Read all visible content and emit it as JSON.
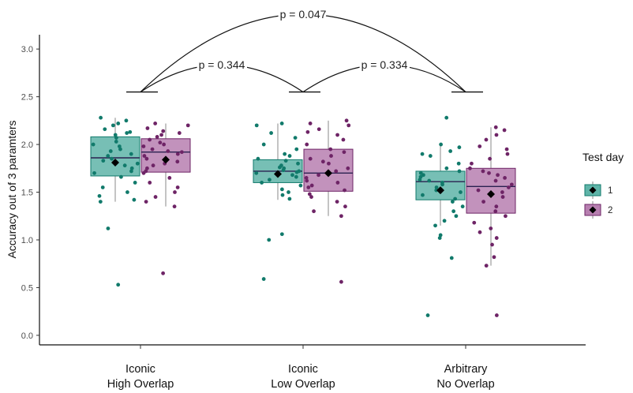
{
  "chart_data": {
    "type": "box",
    "ylabel": "Accuracy out of 3 paramters",
    "ylim": [
      -0.1,
      3.15
    ],
    "yticks": [
      "0.0",
      "0.5",
      "1.0",
      "1.5",
      "2.0",
      "2.5",
      "3.0"
    ],
    "categories": [
      {
        "line1": "Iconic",
        "line2": "High Overlap"
      },
      {
        "line1": "Iconic",
        "line2": "Low Overlap"
      },
      {
        "line1": "Arbitrary",
        "line2": "No Overlap"
      }
    ],
    "legend": {
      "title": "Test day",
      "position": "right",
      "items": [
        {
          "label": "1",
          "color": "#1a8c7c"
        },
        {
          "label": "2",
          "color": "#7b2a72"
        }
      ]
    },
    "colors": {
      "day1_fill": "#5fb4a8",
      "day1_point": "#117a6b",
      "day2_fill": "#b77fb0",
      "day2_point": "#6e2466"
    },
    "series": [
      {
        "name": "1",
        "boxes": [
          {
            "q1": 1.67,
            "median": 1.86,
            "q3": 2.08,
            "whisker_low": 1.4,
            "whisker_high": 2.28,
            "mean": 1.81,
            "points": [
              2.28,
              2.25,
              2.22,
              2.2,
              2.16,
              2.13,
              2.12,
              2.1,
              2.07,
              2.03,
              2.0,
              1.98,
              1.95,
              1.93,
              1.9,
              1.88,
              1.85,
              1.83,
              1.8,
              1.78,
              1.75,
              1.72,
              1.7,
              1.66,
              1.6,
              1.55,
              1.5,
              1.46,
              1.42,
              1.4,
              1.12,
              0.53
            ]
          },
          {
            "q1": 1.6,
            "median": 1.72,
            "q3": 1.84,
            "whisker_low": 1.42,
            "whisker_high": 2.22,
            "mean": 1.69,
            "points": [
              2.22,
              2.2,
              2.12,
              2.07,
              2.0,
              1.95,
              1.9,
              1.88,
              1.85,
              1.83,
              1.8,
              1.78,
              1.76,
              1.75,
              1.73,
              1.72,
              1.71,
              1.7,
              1.68,
              1.66,
              1.63,
              1.6,
              1.57,
              1.53,
              1.5,
              1.47,
              1.43,
              1.06,
              1.0,
              0.59
            ]
          },
          {
            "q1": 1.42,
            "median": 1.61,
            "q3": 1.72,
            "whisker_low": 1.15,
            "whisker_high": 2.0,
            "mean": 1.52,
            "points": [
              2.28,
              2.0,
              1.97,
              1.93,
              1.9,
              1.88,
              1.8,
              1.75,
              1.72,
              1.7,
              1.68,
              1.66,
              1.63,
              1.62,
              1.6,
              1.58,
              1.55,
              1.52,
              1.5,
              1.47,
              1.43,
              1.4,
              1.35,
              1.3,
              1.25,
              1.2,
              1.15,
              1.05,
              1.02,
              0.81,
              0.21
            ]
          }
        ]
      },
      {
        "name": "2",
        "boxes": [
          {
            "q1": 1.71,
            "median": 1.92,
            "q3": 2.06,
            "whisker_low": 1.35,
            "whisker_high": 2.22,
            "mean": 1.84,
            "points": [
              2.22,
              2.2,
              2.17,
              2.14,
              2.12,
              2.1,
              2.08,
              2.05,
              2.02,
              2.0,
              1.98,
              1.95,
              1.93,
              1.92,
              1.9,
              1.88,
              1.85,
              1.82,
              1.8,
              1.78,
              1.75,
              1.72,
              1.7,
              1.65,
              1.6,
              1.55,
              1.5,
              1.45,
              1.4,
              1.35,
              0.65
            ]
          },
          {
            "q1": 1.51,
            "median": 1.7,
            "q3": 1.95,
            "whisker_low": 1.25,
            "whisker_high": 2.25,
            "mean": 1.7,
            "points": [
              2.25,
              2.22,
              2.2,
              2.16,
              2.13,
              2.1,
              2.05,
              2.0,
              1.95,
              1.92,
              1.88,
              1.85,
              1.82,
              1.8,
              1.75,
              1.72,
              1.7,
              1.68,
              1.65,
              1.62,
              1.6,
              1.57,
              1.55,
              1.52,
              1.48,
              1.45,
              1.4,
              1.35,
              1.3,
              1.25,
              0.56
            ]
          },
          {
            "q1": 1.28,
            "median": 1.56,
            "q3": 1.75,
            "whisker_low": 0.73,
            "whisker_high": 2.18,
            "mean": 1.48,
            "points": [
              2.18,
              2.15,
              2.1,
              2.05,
              1.98,
              1.95,
              1.9,
              1.85,
              1.8,
              1.75,
              1.72,
              1.7,
              1.68,
              1.65,
              1.62,
              1.58,
              1.55,
              1.52,
              1.5,
              1.45,
              1.4,
              1.35,
              1.3,
              1.25,
              1.18,
              1.12,
              1.08,
              1.02,
              0.95,
              0.82,
              0.73,
              0.21
            ]
          }
        ]
      }
    ],
    "significance": [
      {
        "label": "p = 0.344",
        "from": 0,
        "to": 1
      },
      {
        "label": "p = 0.334",
        "from": 1,
        "to": 2
      },
      {
        "label": "p = 0.047",
        "from": 0,
        "to": 2
      }
    ]
  }
}
